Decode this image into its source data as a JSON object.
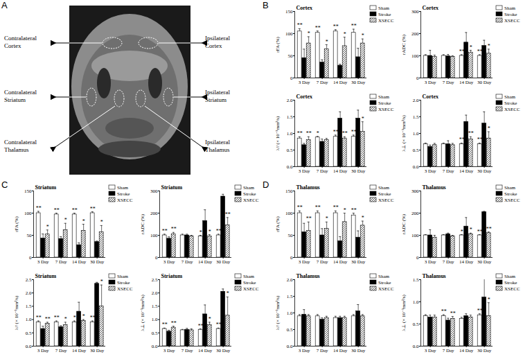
{
  "diagram": {
    "label": "A",
    "regions": [
      "Contralateral Cortex",
      "Contralateral Striatum",
      "Contralateral Thalamus",
      "Ipsilateral Cortex",
      "Ipsilateral Striatum",
      "Ipsilateral Thalamus"
    ]
  },
  "chart_data": [
    {
      "panel": "B",
      "type": "bar",
      "title": "Cortex",
      "ylabel": "rFA (%)",
      "categories": [
        "3 Day",
        "7 Day",
        "14 Day",
        "30 Day"
      ],
      "ylim": [
        0,
        150
      ],
      "yticks": [
        0,
        50,
        100,
        150
      ],
      "legend": "right",
      "series": [
        {
          "name": "Sham",
          "color": "#ffffff",
          "values": [
            105,
            102,
            105,
            102
          ],
          "errors": [
            6,
            4,
            4,
            8
          ],
          "significance": [
            "**",
            "**",
            "**",
            "**"
          ]
        },
        {
          "name": "Stroke",
          "color": "#000000",
          "values": [
            45,
            35,
            28,
            47
          ],
          "errors": [
            20,
            6,
            3,
            20
          ]
        },
        {
          "name": "XSECC",
          "color": "#000000",
          "marker": "hatch",
          "values": [
            78,
            65,
            72,
            78
          ],
          "errors": [
            15,
            10,
            20,
            10
          ],
          "significance": [
            "*",
            "*",
            "*",
            "*"
          ]
        }
      ]
    },
    {
      "panel": "B",
      "type": "bar",
      "title": "Cortex",
      "ylabel": "rADC (%)",
      "categories": [
        "3 Day",
        "7 Day",
        "14 Day",
        "30 Day"
      ],
      "ylim": [
        0,
        300
      ],
      "yticks": [
        0,
        100,
        200,
        300
      ],
      "legend": "right",
      "series": [
        {
          "name": "Sham",
          "color": "#ffffff",
          "values": [
            100,
            100,
            100,
            100
          ],
          "errors": [
            5,
            5,
            5,
            5
          ],
          "significance": [
            null,
            null,
            "**",
            "**"
          ]
        },
        {
          "name": "Stroke",
          "color": "#000000",
          "values": [
            100,
            98,
            160,
            145
          ],
          "errors": [
            25,
            8,
            45,
            25
          ]
        },
        {
          "name": "XSECC",
          "color": "#000000",
          "marker": "hatch",
          "values": [
            95,
            95,
            115,
            110
          ],
          "errors": [
            8,
            5,
            10,
            20
          ],
          "significance": [
            null,
            null,
            "*",
            "*"
          ]
        }
      ]
    },
    {
      "panel": "B",
      "type": "bar",
      "title": "Cortex",
      "ylabel": "λ// (× 10⁻³mm²/s)",
      "categories": [
        "3 Day",
        "7 Day",
        "14 Day",
        "30 Day"
      ],
      "ylim": [
        0,
        2
      ],
      "yticks": [
        {
          "value": 0,
          "label": "0.0"
        },
        0.5,
        {
          "value": 1,
          "label": "1.0"
        },
        1.5,
        {
          "value": 2,
          "label": "2.0"
        }
      ],
      "legend": "right",
      "series": [
        {
          "name": "Sham",
          "color": "#ffffff",
          "values": [
            0.85,
            0.88,
            0.9,
            0.9
          ],
          "errors": [
            0.05,
            0.03,
            0.05,
            0.05
          ],
          "significance": [
            "**",
            "*",
            "**",
            "**"
          ]
        },
        {
          "name": "Stroke",
          "color": "#000000",
          "values": [
            0.65,
            0.75,
            1.45,
            1.45
          ],
          "errors": [
            0.05,
            0.08,
            0.2,
            0.25
          ]
        },
        {
          "name": "XSECC",
          "color": "#000000",
          "marker": "hatch",
          "values": [
            0.8,
            0.8,
            0.85,
            1.05
          ],
          "errors": [
            0.1,
            0.05,
            0.05,
            0.3
          ],
          "significance": [
            "**",
            null,
            "**",
            "*"
          ]
        }
      ]
    },
    {
      "panel": "B",
      "type": "bar",
      "title": "Cortex",
      "ylabel": "λ⊥ (× 10⁻³mm²/s)",
      "categories": [
        "3 Day",
        "7 Day",
        "14 Day",
        "30 Day"
      ],
      "ylim": [
        0,
        2
      ],
      "yticks": [
        {
          "value": 0,
          "label": "0.0"
        },
        0.5,
        {
          "value": 1,
          "label": "1.0"
        },
        1.5,
        {
          "value": 2,
          "label": "2.0"
        }
      ],
      "legend": "right",
      "series": [
        {
          "name": "Sham",
          "color": "#ffffff",
          "values": [
            0.68,
            0.68,
            0.68,
            0.68
          ],
          "errors": [
            0.03,
            0.03,
            0.03,
            0.03
          ],
          "significance": [
            null,
            null,
            "**",
            "**"
          ]
        },
        {
          "name": "Stroke",
          "color": "#000000",
          "values": [
            0.6,
            0.68,
            1.35,
            1.3
          ],
          "errors": [
            0.05,
            0.1,
            0.2,
            0.35
          ]
        },
        {
          "name": "XSECC",
          "color": "#000000",
          "marker": "hatch",
          "values": [
            0.65,
            0.65,
            0.82,
            0.85
          ],
          "errors": [
            0.05,
            0.05,
            0.08,
            0.2
          ],
          "significance": [
            null,
            null,
            "**",
            "*"
          ]
        }
      ]
    },
    {
      "panel": "C",
      "type": "bar",
      "title": "Striatum",
      "ylabel": "rFA (%)",
      "categories": [
        "3 Day",
        "7 Day",
        "14 Day",
        "30 Day"
      ],
      "ylim": [
        0,
        150
      ],
      "yticks": [
        0,
        50,
        100,
        150
      ],
      "legend": "right",
      "series": [
        {
          "name": "Sham",
          "color": "#ffffff",
          "values": [
            100,
            97,
            97,
            100
          ],
          "errors": [
            4,
            3,
            3,
            3
          ],
          "significance": [
            "**",
            "**",
            "**",
            "**"
          ]
        },
        {
          "name": "Stroke",
          "color": "#000000",
          "values": [
            43,
            42,
            28,
            35
          ],
          "errors": [
            10,
            5,
            5,
            2
          ]
        },
        {
          "name": "XSECC",
          "color": "#000000",
          "marker": "hatch",
          "values": [
            52,
            62,
            60,
            57
          ],
          "errors": [
            10,
            15,
            15,
            15
          ],
          "significance": [
            "*",
            "*",
            "*",
            "*"
          ]
        }
      ]
    },
    {
      "panel": "C",
      "type": "bar",
      "title": "Striatum",
      "ylabel": "rADC (%)",
      "categories": [
        "3 Day",
        "7 Day",
        "14 Day",
        "30 Day"
      ],
      "ylim": [
        0,
        300
      ],
      "yticks": [
        0,
        100,
        200,
        300
      ],
      "legend": "right",
      "series": [
        {
          "name": "Sham",
          "color": "#ffffff",
          "values": [
            100,
            100,
            95,
            100
          ],
          "errors": [
            5,
            5,
            5,
            5
          ],
          "significance": [
            "**",
            null,
            "*",
            "**"
          ]
        },
        {
          "name": "Stroke",
          "color": "#000000",
          "values": [
            85,
            100,
            165,
            275
          ],
          "errors": [
            8,
            5,
            50,
            10
          ]
        },
        {
          "name": "XSECC",
          "color": "#000000",
          "marker": "hatch",
          "values": [
            105,
            95,
            95,
            145
          ],
          "errors": [
            8,
            5,
            8,
            35
          ],
          "significance": [
            "**",
            null,
            "*",
            "**"
          ]
        }
      ]
    },
    {
      "panel": "C",
      "type": "bar",
      "title": "Striatum",
      "ylabel": "λ// (× 10⁻³mm²/s)",
      "categories": [
        "3 Day",
        "7 Day",
        "14 Day",
        "30 Day"
      ],
      "ylim": [
        0,
        2.5
      ],
      "yticks": [
        {
          "value": 0,
          "label": "0.0"
        },
        0.5,
        {
          "value": 1,
          "label": "1.0"
        },
        1.5,
        {
          "value": 2,
          "label": "2.0"
        },
        2.5
      ],
      "legend": "right",
      "series": [
        {
          "name": "Sham",
          "color": "#ffffff",
          "values": [
            0.9,
            0.9,
            0.9,
            0.9
          ],
          "errors": [
            0.05,
            0.05,
            0.05,
            0.05
          ],
          "significance": [
            "**",
            "**",
            "*",
            "**"
          ]
        },
        {
          "name": "Stroke",
          "color": "#000000",
          "values": [
            0.65,
            0.72,
            1.3,
            2.35
          ],
          "errors": [
            0.1,
            0.05,
            0.35,
            0.05
          ]
        },
        {
          "name": "XSECC",
          "color": "#000000",
          "marker": "hatch",
          "values": [
            0.85,
            0.8,
            0.95,
            1.5
          ],
          "errors": [
            0.05,
            0.1,
            0.05,
            0.8
          ],
          "significance": [
            "**",
            "*",
            "*",
            "*"
          ]
        }
      ]
    },
    {
      "panel": "C",
      "type": "bar",
      "title": "Striatum",
      "ylabel": "λ⊥ (× 10⁻³mm²/s)",
      "categories": [
        "3 Day",
        "7 Day",
        "14 Day",
        "30 Day"
      ],
      "ylim": [
        0,
        2.5
      ],
      "yticks": [
        {
          "value": 0,
          "label": "0.0"
        },
        0.5,
        {
          "value": 1,
          "label": "1.0"
        },
        1.5,
        {
          "value": 2,
          "label": "2.0"
        },
        2.5
      ],
      "legend": "right",
      "series": [
        {
          "name": "Sham",
          "color": "#ffffff",
          "values": [
            0.65,
            0.6,
            0.62,
            0.65
          ],
          "errors": [
            0.03,
            0.03,
            0.03,
            0.03
          ],
          "significance": [
            "**",
            null,
            "**",
            "**"
          ]
        },
        {
          "name": "Stroke",
          "color": "#000000",
          "values": [
            0.55,
            0.62,
            1.2,
            2.05
          ],
          "errors": [
            0.05,
            0.05,
            0.35,
            0.1
          ]
        },
        {
          "name": "XSECC",
          "color": "#000000",
          "marker": "hatch",
          "values": [
            0.7,
            0.6,
            0.8,
            1.15
          ],
          "errors": [
            0.05,
            0.05,
            0.1,
            0.7
          ],
          "significance": [
            "**",
            null,
            "*",
            "*"
          ]
        }
      ]
    },
    {
      "panel": "D",
      "type": "bar",
      "title": "Thalamus",
      "ylabel": "rFA (%)",
      "categories": [
        "3 Day",
        "7 Day",
        "14 Day",
        "30 Day"
      ],
      "ylim": [
        0,
        150
      ],
      "yticks": [
        0,
        50,
        100,
        150
      ],
      "legend": "right",
      "series": [
        {
          "name": "Sham",
          "color": "#ffffff",
          "values": [
            100,
            100,
            100,
            95
          ],
          "errors": [
            5,
            5,
            5,
            5
          ],
          "significance": [
            "**",
            "**",
            "**",
            "**"
          ]
        },
        {
          "name": "Stroke",
          "color": "#000000",
          "values": [
            57,
            50,
            37,
            45
          ],
          "errors": [
            20,
            15,
            10,
            15
          ]
        },
        {
          "name": "XSECC",
          "color": "#000000",
          "marker": "hatch",
          "values": [
            60,
            65,
            80,
            72
          ],
          "errors": [
            20,
            15,
            20,
            10
          ],
          "significance": [
            "**",
            "*",
            "*",
            "*"
          ]
        }
      ]
    },
    {
      "panel": "D",
      "type": "bar",
      "title": "Thalamus",
      "ylabel": "rADC (%)",
      "categories": [
        "3 Day",
        "7 Day",
        "14 Day",
        "30 Day"
      ],
      "ylim": [
        0,
        300
      ],
      "yticks": [
        0,
        100,
        200,
        300
      ],
      "legend": "right",
      "series": [
        {
          "name": "Sham",
          "color": "#ffffff",
          "values": [
            100,
            100,
            100,
            100
          ],
          "errors": [
            3,
            3,
            3,
            3
          ],
          "significance": [
            null,
            null,
            "*",
            "**"
          ]
        },
        {
          "name": "Stroke",
          "color": "#000000",
          "values": [
            100,
            105,
            140,
            205
          ],
          "errors": [
            25,
            5,
            40,
            3
          ]
        },
        {
          "name": "XSECC",
          "color": "#000000",
          "marker": "hatch",
          "values": [
            90,
            95,
            105,
            110
          ],
          "errors": [
            10,
            5,
            5,
            5
          ],
          "significance": [
            null,
            null,
            "*",
            "**"
          ]
        }
      ]
    },
    {
      "panel": "D",
      "type": "bar",
      "title": "Thalamus",
      "ylabel": "λ// (× 10⁻³mm²/s)",
      "categories": [
        "3 Day",
        "7 Day",
        "14 Day",
        "30 Day"
      ],
      "ylim": [
        0,
        2
      ],
      "yticks": [
        {
          "value": 0,
          "label": "0.0"
        },
        0.5,
        {
          "value": 1,
          "label": "1.0"
        },
        1.5,
        {
          "value": 2,
          "label": "2.0"
        }
      ],
      "legend": "right",
      "series": [
        {
          "name": "Sham",
          "color": "#ffffff",
          "values": [
            0.9,
            0.9,
            0.85,
            0.9
          ],
          "errors": [
            0.05,
            0.05,
            0.05,
            0.05
          ]
        },
        {
          "name": "Stroke",
          "color": "#000000",
          "values": [
            0.95,
            0.8,
            0.85,
            1.05
          ],
          "errors": [
            0.15,
            0.05,
            0.05,
            0.2
          ]
        },
        {
          "name": "XSECC",
          "color": "#000000",
          "marker": "hatch",
          "values": [
            0.9,
            0.85,
            0.85,
            0.9
          ],
          "errors": [
            0.05,
            0.05,
            0.05,
            0.05
          ]
        }
      ]
    },
    {
      "panel": "D",
      "type": "bar",
      "title": "Thalamus",
      "ylabel": "λ⊥ (× 10⁻³mm²/s)",
      "categories": [
        "3 Day",
        "7 Day",
        "14 Day",
        "30 Day"
      ],
      "ylim": [
        0,
        1.5
      ],
      "yticks": [
        {
          "value": 0,
          "label": "0.0"
        },
        0.5,
        {
          "value": 1,
          "label": "1.0"
        },
        1.5
      ],
      "legend": "right",
      "series": [
        {
          "name": "Sham",
          "color": "#ffffff",
          "values": [
            0.68,
            0.68,
            0.62,
            0.7
          ],
          "errors": [
            0.03,
            0.03,
            0.03,
            0.03
          ],
          "significance": [
            null,
            "**",
            null,
            "**"
          ]
        },
        {
          "name": "Stroke",
          "color": "#000000",
          "values": [
            0.65,
            0.58,
            0.68,
            1.1
          ],
          "errors": [
            0.05,
            0.05,
            0.05,
            0.6
          ]
        },
        {
          "name": "XSECC",
          "color": "#000000",
          "marker": "hatch",
          "values": [
            0.65,
            0.62,
            0.65,
            0.68
          ],
          "errors": [
            0.05,
            0.05,
            0.05,
            0.3
          ],
          "significance": [
            null,
            "**",
            null,
            "*"
          ]
        }
      ]
    }
  ]
}
